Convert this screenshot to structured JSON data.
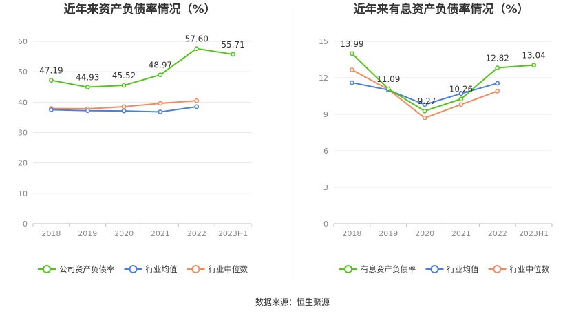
{
  "source_text": "数据来源：恒生聚源",
  "chart_data": [
    {
      "type": "line",
      "title": "近年来资产负债率情况（%）",
      "categories": [
        "2018",
        "2019",
        "2020",
        "2021",
        "2022",
        "2023H1"
      ],
      "ylim": [
        0,
        60
      ],
      "yticks": [
        0,
        10,
        20,
        30,
        40,
        50,
        60
      ],
      "yticks_label": [
        "0",
        "10",
        "20",
        "30",
        "40",
        "50",
        "60"
      ],
      "grid": true,
      "legend_position": "bottom",
      "series": [
        {
          "name": "公司资产负债率",
          "color": "#52c41a",
          "values": [
            47.19,
            44.93,
            45.52,
            48.97,
            57.6,
            55.71
          ],
          "labels": [
            "47.19",
            "44.93",
            "45.52",
            "48.97",
            "57.60",
            "55.71"
          ]
        },
        {
          "name": "行业均值",
          "color": "#4a7fdc",
          "values": [
            37.5,
            37.2,
            37.1,
            36.8,
            38.5,
            null
          ],
          "labels": []
        },
        {
          "name": "行业中位数",
          "color": "#f28b5e",
          "values": [
            37.9,
            37.8,
            38.5,
            39.6,
            40.5,
            null
          ],
          "labels": []
        }
      ]
    },
    {
      "type": "line",
      "title": "近年来有息资产负债率情况（%）",
      "categories": [
        "2018",
        "2019",
        "2020",
        "2021",
        "2022",
        "2023H1"
      ],
      "ylim": [
        0,
        15
      ],
      "yticks": [
        0,
        3,
        6,
        9,
        12,
        15
      ],
      "yticks_label": [
        "0",
        "3",
        "6",
        "9",
        "12",
        "15"
      ],
      "grid": true,
      "legend_position": "bottom",
      "series": [
        {
          "name": "有息资产负债率",
          "color": "#52c41a",
          "values": [
            13.99,
            11.09,
            9.27,
            10.26,
            12.82,
            13.04
          ],
          "labels": [
            "13.99",
            "11.09",
            "9.27",
            "10.26",
            "12.82",
            "13.04"
          ]
        },
        {
          "name": "行业均值",
          "color": "#4a7fdc",
          "values": [
            11.6,
            11.0,
            9.8,
            10.7,
            11.55,
            null
          ],
          "labels": []
        },
        {
          "name": "行业中位数",
          "color": "#f28b5e",
          "values": [
            12.65,
            11.05,
            8.7,
            9.8,
            10.9,
            null
          ],
          "labels": []
        }
      ]
    }
  ]
}
